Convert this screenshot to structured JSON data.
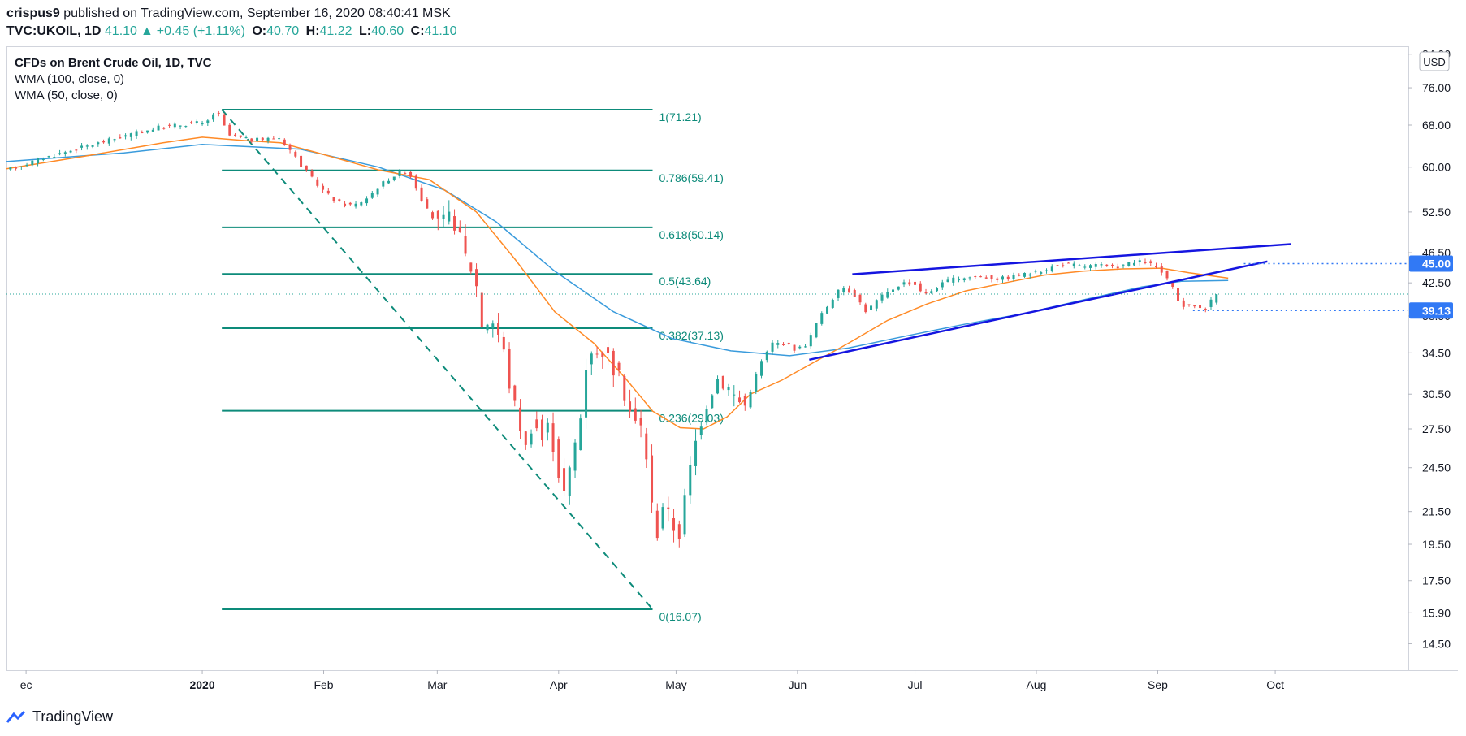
{
  "header": {
    "author": "crispus9",
    "published": " published on TradingView.com, September 16, 2020 08:40:41 MSK",
    "symbol": "TVC:UKOIL, 1D",
    "last": "41.10",
    "change": "+0.45 (+1.11%)",
    "o_label": "O:",
    "o_value": "40.70",
    "h_label": "H:",
    "h_value": "41.22",
    "l_label": "L:",
    "l_value": "40.60",
    "c_label": "C:",
    "c_value": "41.10"
  },
  "legend": {
    "line1": "CFDs on Brent Crude Oil, 1D, TVC",
    "line2": "WMA (100, close, 0)",
    "line3": "WMA (50, close, 0)"
  },
  "currency_button": "USD",
  "footer": {
    "brand": "TradingView"
  },
  "colors": {
    "up": "#26a69a",
    "down": "#ef5350",
    "wma100": "#3a9bdc",
    "wma50": "#ff8a26",
    "fib": "#0d8b7a",
    "trend": "#1515e0",
    "label_bg": "#3179f5"
  },
  "chart_data": {
    "type": "candlestick",
    "title": "CFDs on Brent Crude Oil, 1D, TVC",
    "y_ticks": [
      "84.00",
      "76.00",
      "68.00",
      "60.00",
      "52.50",
      "46.50",
      "42.50",
      "38.50",
      "34.50",
      "30.50",
      "27.50",
      "24.50",
      "21.50",
      "19.50",
      "17.50",
      "15.90",
      "14.50"
    ],
    "y_tick_values": [
      84.0,
      76.0,
      68.0,
      60.0,
      52.5,
      46.5,
      42.5,
      38.5,
      34.5,
      30.5,
      27.5,
      24.5,
      21.5,
      19.5,
      17.5,
      15.9,
      14.5
    ],
    "y_scale": "log",
    "ylim": [
      13.4,
      86
    ],
    "x_ticks": [
      "ec",
      "2020",
      "Feb",
      "Mar",
      "Apr",
      "May",
      "Jun",
      "Jul",
      "Aug",
      "Sep",
      "Oct"
    ],
    "x_tick_days": [
      -45,
      0,
      31,
      60,
      91,
      121,
      152,
      182,
      213,
      244,
      274
    ],
    "x_range_days": [
      -50,
      308
    ],
    "fib_levels": [
      {
        "label": "1(71.21)",
        "value": 71.21
      },
      {
        "label": "0.786(59.41)",
        "value": 59.41
      },
      {
        "label": "0.618(50.14)",
        "value": 50.14
      },
      {
        "label": "0.5(43.64)",
        "value": 43.64
      },
      {
        "label": "0.382(37.13)",
        "value": 37.13
      },
      {
        "label": "0.236(29.03)",
        "value": 29.03
      },
      {
        "label": "0(16.07)",
        "value": 16.07
      }
    ],
    "fib_day_range": [
      5,
      115
    ],
    "fib_diagonal": [
      [
        5,
        71.21
      ],
      [
        115,
        16.07
      ]
    ],
    "price_labels": [
      {
        "text": "45.00",
        "value": 45.0
      },
      {
        "text": "39.13",
        "value": 39.13
      }
    ],
    "last_price": 41.1,
    "trendlines": [
      {
        "name": "upper",
        "points": [
          [
            166,
            43.6
          ],
          [
            278,
            47.7
          ]
        ]
      },
      {
        "name": "lower",
        "points": [
          [
            155,
            33.8
          ],
          [
            272,
            45.3
          ]
        ]
      }
    ],
    "keypoints": [
      [
        -49,
        59.3
      ],
      [
        -40,
        61.5
      ],
      [
        -30,
        63.5
      ],
      [
        -20,
        65.5
      ],
      [
        -10,
        67.5
      ],
      [
        0,
        68.5
      ],
      [
        2,
        68.0
      ],
      [
        5,
        71.2
      ],
      [
        8,
        66.0
      ],
      [
        14,
        65.0
      ],
      [
        21,
        65.5
      ],
      [
        24,
        63.0
      ],
      [
        27,
        60.0
      ],
      [
        30,
        57.5
      ],
      [
        33,
        55.5
      ],
      [
        36,
        54.0
      ],
      [
        40,
        53.5
      ],
      [
        43,
        54.5
      ],
      [
        47,
        57.0
      ],
      [
        51,
        58.8
      ],
      [
        54,
        59.3
      ],
      [
        56,
        56.5
      ],
      [
        59,
        52.5
      ],
      [
        62,
        50.5
      ],
      [
        65,
        52.0
      ],
      [
        67,
        49.0
      ],
      [
        69,
        45.3
      ],
      [
        71,
        43.5
      ],
      [
        73,
        37.0
      ],
      [
        75,
        38.5
      ],
      [
        78,
        35.5
      ],
      [
        80,
        31.0
      ],
      [
        82,
        28.5
      ],
      [
        84,
        26.0
      ],
      [
        86,
        28.5
      ],
      [
        88,
        26.5
      ],
      [
        90,
        28.0
      ],
      [
        92,
        24.5
      ],
      [
        94,
        22.5
      ],
      [
        96,
        25.5
      ],
      [
        98,
        28.5
      ],
      [
        100,
        35.5
      ],
      [
        102,
        34.0
      ],
      [
        104,
        35.0
      ],
      [
        106,
        33.0
      ],
      [
        108,
        32.0
      ],
      [
        110,
        29.5
      ],
      [
        112,
        28.0
      ],
      [
        114,
        27.5
      ],
      [
        116,
        22.5
      ],
      [
        117,
        19.5
      ],
      [
        119,
        22.0
      ],
      [
        121,
        21.0
      ],
      [
        123,
        19.8
      ],
      [
        125,
        23.0
      ],
      [
        127,
        26.0
      ],
      [
        129,
        28.5
      ],
      [
        131,
        30.5
      ],
      [
        133,
        32.0
      ],
      [
        136,
        31.0
      ],
      [
        138,
        30.0
      ],
      [
        140,
        29.5
      ],
      [
        142,
        31.5
      ],
      [
        144,
        33.5
      ],
      [
        147,
        35.5
      ],
      [
        150,
        35.5
      ],
      [
        153,
        34.8
      ],
      [
        156,
        35.5
      ],
      [
        158,
        37.5
      ],
      [
        160,
        39.0
      ],
      [
        163,
        41.0
      ],
      [
        165,
        42.0
      ],
      [
        168,
        41.0
      ],
      [
        171,
        39.0
      ],
      [
        174,
        40.5
      ],
      [
        177,
        41.5
      ],
      [
        180,
        42.5
      ],
      [
        183,
        42.5
      ],
      [
        186,
        41.0
      ],
      [
        189,
        42.0
      ],
      [
        192,
        42.8
      ],
      [
        196,
        43.2
      ],
      [
        200,
        43.3
      ],
      [
        205,
        43.0
      ],
      [
        210,
        43.5
      ],
      [
        214,
        43.8
      ],
      [
        218,
        44.5
      ],
      [
        222,
        45.0
      ],
      [
        226,
        44.6
      ],
      [
        230,
        44.8
      ],
      [
        234,
        44.5
      ],
      [
        238,
        45.0
      ],
      [
        242,
        45.3
      ],
      [
        245,
        44.5
      ],
      [
        247,
        43.5
      ],
      [
        249,
        42.0
      ],
      [
        251,
        39.8
      ],
      [
        253,
        39.6
      ],
      [
        255,
        39.8
      ],
      [
        257,
        39.2
      ],
      [
        259,
        40.3
      ],
      [
        260,
        41.1
      ]
    ],
    "wma100_points": [
      [
        -50,
        61.0
      ],
      [
        -20,
        62.6
      ],
      [
        0,
        64.2
      ],
      [
        25,
        63.3
      ],
      [
        45,
        60.0
      ],
      [
        62,
        56.0
      ],
      [
        75,
        51.0
      ],
      [
        90,
        44.0
      ],
      [
        105,
        39.0
      ],
      [
        120,
        36.0
      ],
      [
        135,
        34.7
      ],
      [
        150,
        34.2
      ],
      [
        165,
        35.0
      ],
      [
        180,
        36.3
      ],
      [
        195,
        37.6
      ],
      [
        210,
        38.8
      ],
      [
        225,
        40.4
      ],
      [
        240,
        42.0
      ],
      [
        250,
        42.7
      ],
      [
        262,
        42.8
      ]
    ],
    "wma50_points": [
      [
        -50,
        59.7
      ],
      [
        -30,
        62.0
      ],
      [
        -10,
        64.5
      ],
      [
        0,
        65.6
      ],
      [
        10,
        65.0
      ],
      [
        20,
        64.5
      ],
      [
        30,
        62.5
      ],
      [
        45,
        59.5
      ],
      [
        58,
        57.8
      ],
      [
        70,
        52.5
      ],
      [
        80,
        45.5
      ],
      [
        90,
        39.0
      ],
      [
        100,
        35.5
      ],
      [
        108,
        32.0
      ],
      [
        115,
        29.0
      ],
      [
        122,
        27.6
      ],
      [
        128,
        27.5
      ],
      [
        134,
        28.5
      ],
      [
        140,
        30.5
      ],
      [
        148,
        31.8
      ],
      [
        156,
        33.5
      ],
      [
        165,
        35.5
      ],
      [
        175,
        38.0
      ],
      [
        185,
        39.9
      ],
      [
        195,
        41.5
      ],
      [
        205,
        42.5
      ],
      [
        215,
        43.5
      ],
      [
        225,
        44.0
      ],
      [
        235,
        44.3
      ],
      [
        245,
        44.4
      ],
      [
        252,
        43.8
      ],
      [
        262,
        43.1
      ]
    ]
  }
}
